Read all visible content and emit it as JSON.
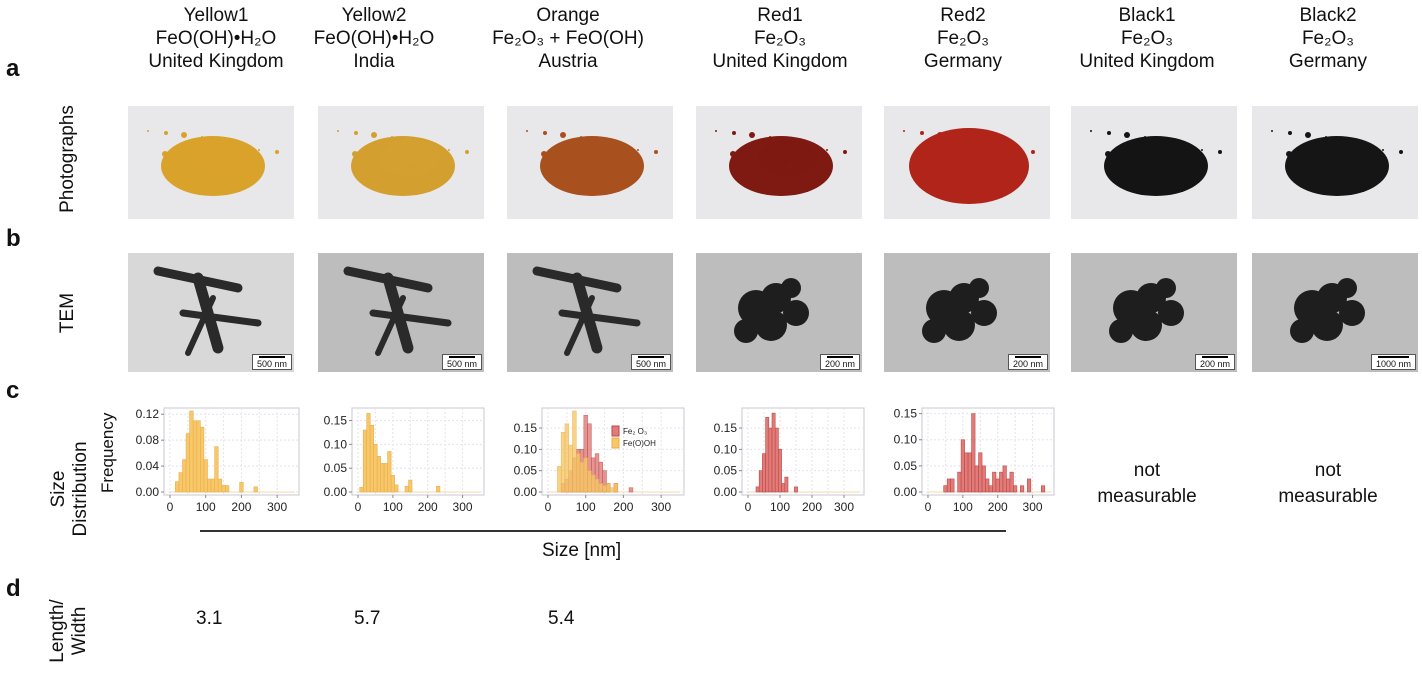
{
  "panels": {
    "a": {
      "letter": "a",
      "row_label": "Photographs"
    },
    "b": {
      "letter": "b",
      "row_label": "TEM"
    },
    "c": {
      "letter": "c",
      "row_label_1": "Size",
      "row_label_2": "Distribution"
    },
    "d": {
      "letter": "d",
      "row_label_1": "Length/",
      "row_label_2": "Width"
    }
  },
  "samples": [
    {
      "name": "Yellow1",
      "formula": "FeO(OH)•H₂O",
      "country": "United Kingdom",
      "powder_color": "#d9a22a",
      "tem_scale": "500 nm",
      "length_width": "3.1"
    },
    {
      "name": "Yellow2",
      "formula": "FeO(OH)•H₂O",
      "country": "India",
      "powder_color": "#d3a030",
      "tem_scale": "500 nm",
      "length_width": "5.7"
    },
    {
      "name": "Orange",
      "formula": "Fe₂O₃ + FeO(OH)",
      "country": "Austria",
      "powder_color": "#a8501e",
      "tem_scale": "500 nm",
      "length_width": "5.4"
    },
    {
      "name": "Red1",
      "formula": "Fe₂O₃",
      "country": "United Kingdom",
      "powder_color": "#7e1a12",
      "tem_scale": "200 nm"
    },
    {
      "name": "Red2",
      "formula": "Fe₂O₃",
      "country": "Germany",
      "powder_color": "#b0241a",
      "tem_scale": "200 nm"
    },
    {
      "name": "Black1",
      "formula": "Fe₂O₃",
      "country": "United Kingdom",
      "powder_color": "#141414",
      "tem_scale": "200 nm",
      "size_note_1": "not",
      "size_note_2": "measurable"
    },
    {
      "name": "Black2",
      "formula": "Fe₂O₃",
      "country": "Germany",
      "powder_color": "#151515",
      "tem_scale": "1000 nm",
      "size_note_1": "not",
      "size_note_2": "measurable"
    }
  ],
  "shared_axis": {
    "xlabel": "Size [nm]"
  },
  "colors": {
    "yellow_bar": "#f7c76a",
    "yellow_edge": "#e8b04a",
    "red_bar": "#e27b78",
    "red_edge": "#b84a4a",
    "orange_overlap": "#f0902e"
  },
  "chart_data": [
    {
      "type": "bar",
      "title": "Yellow1",
      "ylabel": "Frequency",
      "xlabel": "Size [nm]",
      "xlim": [
        0,
        350
      ],
      "ylim": [
        0,
        0.125
      ],
      "xticks": [
        "0",
        "100",
        "200",
        "300"
      ],
      "yticks": [
        "0.00",
        "0.04",
        "0.08",
        "0.12"
      ],
      "ytick_values": [
        0,
        0.04,
        0.08,
        0.12
      ],
      "bin_width": 10,
      "series": [
        {
          "name": "FeO(OH)",
          "color": "yellow",
          "x": [
            20,
            30,
            40,
            50,
            60,
            70,
            80,
            90,
            100,
            110,
            120,
            130,
            140,
            150,
            160,
            200,
            240
          ],
          "values": [
            0.016,
            0.03,
            0.05,
            0.09,
            0.125,
            0.11,
            0.11,
            0.1,
            0.05,
            0.02,
            0.02,
            0.07,
            0.02,
            0.01,
            0.01,
            0.015,
            0.008
          ]
        }
      ]
    },
    {
      "type": "bar",
      "title": "Yellow2",
      "xlim": [
        0,
        350
      ],
      "ylim": [
        0,
        0.17
      ],
      "xticks": [
        "0",
        "100",
        "200",
        "300"
      ],
      "yticks": [
        "0.00",
        "0.05",
        "0.10",
        "0.15"
      ],
      "ytick_values": [
        0,
        0.05,
        0.1,
        0.15
      ],
      "bin_width": 10,
      "series": [
        {
          "name": "FeO(OH)",
          "color": "yellow",
          "x": [
            10,
            20,
            30,
            40,
            50,
            60,
            70,
            80,
            90,
            100,
            110,
            140,
            150,
            230
          ],
          "values": [
            0.01,
            0.13,
            0.165,
            0.14,
            0.1,
            0.075,
            0.06,
            0.06,
            0.085,
            0.035,
            0.015,
            0.012,
            0.025,
            0.012
          ]
        }
      ]
    },
    {
      "type": "bar",
      "title": "Orange",
      "xlim": [
        0,
        350
      ],
      "ylim": [
        0,
        0.19
      ],
      "xticks": [
        "0",
        "100",
        "200",
        "300"
      ],
      "yticks": [
        "0.00",
        "0.05",
        "0.10",
        "0.15"
      ],
      "ytick_values": [
        0,
        0.05,
        0.1,
        0.15
      ],
      "bin_width": 10,
      "legend": [
        "Fe₂ O₃",
        "Fe(O)OH"
      ],
      "legend_position": "top-right",
      "series": [
        {
          "name": "Fe2O3",
          "color": "red",
          "x": [
            40,
            50,
            60,
            70,
            80,
            90,
            100,
            110,
            120,
            130,
            140,
            150,
            160,
            180,
            220
          ],
          "values": [
            0.02,
            0.03,
            0.05,
            0.08,
            0.1,
            0.1,
            0.18,
            0.16,
            0.08,
            0.09,
            0.07,
            0.05,
            0.02,
            0.02,
            0.01
          ]
        },
        {
          "name": "Fe(O)OH",
          "color": "yellow",
          "x": [
            30,
            40,
            50,
            60,
            70,
            80,
            90,
            100,
            110,
            120,
            130,
            140,
            150,
            160,
            170,
            180
          ],
          "values": [
            0.06,
            0.14,
            0.16,
            0.11,
            0.19,
            0.09,
            0.07,
            0.08,
            0.05,
            0.04,
            0.03,
            0.02,
            0.015,
            0.02,
            0.01,
            0.02
          ]
        }
      ]
    },
    {
      "type": "bar",
      "title": "Red1",
      "xlim": [
        0,
        350
      ],
      "ylim": [
        0,
        0.19
      ],
      "xticks": [
        "0",
        "100",
        "200",
        "300"
      ],
      "yticks": [
        "0.00",
        "0.05",
        "0.10",
        "0.15"
      ],
      "ytick_values": [
        0,
        0.05,
        0.1,
        0.15
      ],
      "bin_width": 10,
      "series": [
        {
          "name": "Fe2O3",
          "color": "red",
          "x": [
            30,
            40,
            50,
            60,
            70,
            80,
            90,
            100,
            110,
            120,
            150
          ],
          "values": [
            0.012,
            0.05,
            0.09,
            0.175,
            0.15,
            0.185,
            0.15,
            0.1,
            0.02,
            0.035,
            0.012
          ]
        }
      ]
    },
    {
      "type": "bar",
      "title": "Red2",
      "xlim": [
        0,
        350
      ],
      "ylim": [
        0,
        0.155
      ],
      "xticks": [
        "0",
        "100",
        "200",
        "300"
      ],
      "yticks": [
        "0.00",
        "0.05",
        "0.10",
        "0.15"
      ],
      "ytick_values": [
        0,
        0.05,
        0.1,
        0.15
      ],
      "bin_width": 10,
      "series": [
        {
          "name": "Fe2O3",
          "color": "red",
          "x": [
            50,
            60,
            70,
            90,
            100,
            110,
            120,
            130,
            140,
            150,
            160,
            170,
            180,
            190,
            200,
            210,
            220,
            230,
            240,
            250,
            270,
            290,
            330
          ],
          "values": [
            0.012,
            0.025,
            0.025,
            0.038,
            0.1,
            0.075,
            0.075,
            0.15,
            0.05,
            0.075,
            0.05,
            0.025,
            0.012,
            0.038,
            0.025,
            0.038,
            0.05,
            0.025,
            0.038,
            0.012,
            0.012,
            0.025,
            0.012
          ]
        }
      ]
    }
  ]
}
